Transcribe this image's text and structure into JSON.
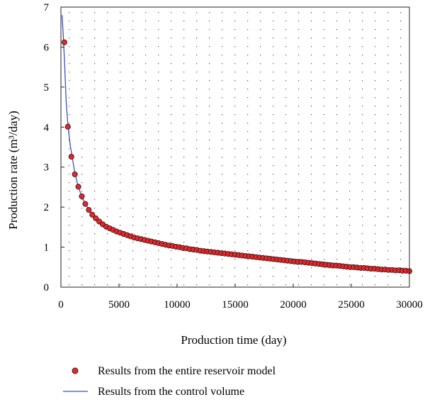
{
  "chart_data": {
    "type": "scatter",
    "xlabel": "Production time (day)",
    "ylabel": "Production rate (m³/day)",
    "xlim": [
      0,
      30000
    ],
    "ylim": [
      0,
      7
    ],
    "xticks": [
      "0",
      "5000",
      "10000",
      "15000",
      "20000",
      "25000",
      "30000"
    ],
    "yticks": [
      "0",
      "1",
      "2",
      "3",
      "4",
      "5",
      "6",
      "7"
    ],
    "grid": "dotted",
    "legend_position": "bottom",
    "series": [
      {
        "name": "Results from the entire reservoir model",
        "style": "markers",
        "color": "#e8262a",
        "edge_color": "#3a1a1a",
        "x": [
          300,
          600,
          900,
          1200,
          1500,
          1800,
          2100,
          2400,
          2700,
          3000,
          3300,
          3600,
          3900,
          4200,
          4500,
          4800,
          5100,
          5400,
          5700,
          6000,
          6300,
          6600,
          6900,
          7200,
          7500,
          7800,
          8100,
          8400,
          8700,
          9000,
          9300,
          9600,
          9900,
          10200,
          10500,
          10800,
          11100,
          11400,
          11700,
          12000,
          12300,
          12600,
          12900,
          13200,
          13500,
          13800,
          14100,
          14400,
          14700,
          15000,
          15300,
          15600,
          15900,
          16200,
          16500,
          16800,
          17100,
          17400,
          17700,
          18000,
          18300,
          18600,
          18900,
          19200,
          19500,
          19800,
          20100,
          20400,
          20700,
          21000,
          21300,
          21600,
          21900,
          22200,
          22500,
          22800,
          23100,
          23400,
          23700,
          24000,
          24300,
          24600,
          24900,
          25200,
          25500,
          25800,
          26100,
          26400,
          26700,
          27000,
          27300,
          27600,
          27900,
          28200,
          28500,
          28800,
          29100,
          29400,
          29700,
          30000
        ],
        "y": [
          6.12,
          4.01,
          3.26,
          2.82,
          2.51,
          2.27,
          2.08,
          1.93,
          1.81,
          1.72,
          1.64,
          1.57,
          1.51,
          1.47,
          1.43,
          1.39,
          1.36,
          1.33,
          1.3,
          1.27,
          1.24,
          1.22,
          1.2,
          1.18,
          1.16,
          1.14,
          1.12,
          1.1,
          1.08,
          1.06,
          1.04,
          1.03,
          1.01,
          1.0,
          0.98,
          0.97,
          0.95,
          0.94,
          0.93,
          0.91,
          0.9,
          0.89,
          0.88,
          0.87,
          0.86,
          0.85,
          0.84,
          0.83,
          0.82,
          0.81,
          0.8,
          0.79,
          0.78,
          0.77,
          0.76,
          0.75,
          0.74,
          0.73,
          0.72,
          0.71,
          0.7,
          0.69,
          0.68,
          0.67,
          0.66,
          0.65,
          0.64,
          0.63,
          0.63,
          0.62,
          0.61,
          0.6,
          0.59,
          0.58,
          0.57,
          0.56,
          0.55,
          0.54,
          0.54,
          0.53,
          0.52,
          0.51,
          0.5,
          0.5,
          0.49,
          0.48,
          0.48,
          0.47,
          0.46,
          0.46,
          0.45,
          0.44,
          0.44,
          0.43,
          0.43,
          0.42,
          0.42,
          0.41,
          0.41,
          0.4
        ]
      },
      {
        "name": "Results from the control volume",
        "style": "line",
        "color": "#3a4fc0",
        "x": [
          100,
          200,
          300,
          450,
          600,
          800,
          1000,
          1200,
          1500,
          1800,
          2100,
          2400,
          2700,
          3000,
          3500,
          4000,
          4500,
          5000,
          5500,
          6000,
          6500,
          7000,
          7500,
          8000,
          9000,
          10000,
          11000,
          12000,
          13000,
          14000,
          15000,
          16000,
          17000,
          18000,
          19000,
          20000,
          21000,
          22000,
          23000,
          24000,
          25000,
          26000,
          27000,
          28000,
          29000,
          30000
        ],
        "y": [
          6.8,
          6.3,
          5.7,
          4.65,
          4.05,
          3.55,
          3.2,
          2.85,
          2.5,
          2.27,
          2.08,
          1.94,
          1.82,
          1.73,
          1.6,
          1.5,
          1.42,
          1.36,
          1.31,
          1.27,
          1.23,
          1.2,
          1.17,
          1.14,
          1.08,
          1.03,
          0.99,
          0.95,
          0.91,
          0.88,
          0.85,
          0.82,
          0.79,
          0.76,
          0.73,
          0.7,
          0.67,
          0.64,
          0.61,
          0.58,
          0.55,
          0.52,
          0.49,
          0.46,
          0.43,
          0.41
        ]
      }
    ]
  }
}
